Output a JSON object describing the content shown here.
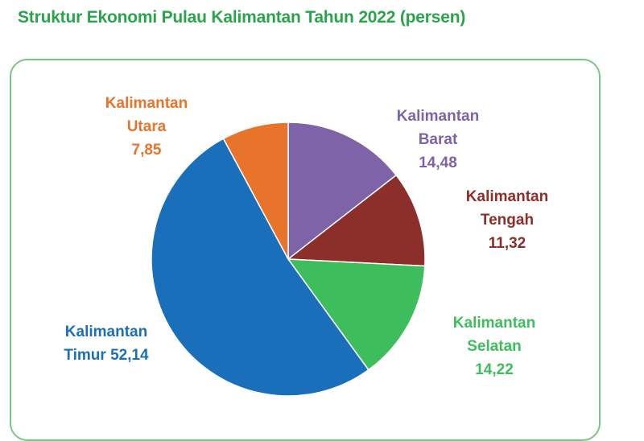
{
  "title": "Struktur Ekonomi Pulau Kalimantan Tahun 2022 (persen)",
  "chart_data": {
    "type": "pie",
    "title": "Struktur Ekonomi Pulau Kalimantan Tahun 2022 (persen)",
    "slices": [
      {
        "name": "Kalimantan Barat",
        "value": 14.48,
        "value_label": "14,48",
        "color": "#7e63a8"
      },
      {
        "name": "Kalimantan Tengah",
        "value": 11.32,
        "value_label": "11,32",
        "color": "#8c2e2a"
      },
      {
        "name": "Kalimantan Selatan",
        "value": 14.22,
        "value_label": "14,22",
        "color": "#3ebd5c"
      },
      {
        "name": "Kalimantan Timur",
        "value": 52.14,
        "value_label": "52,14",
        "color": "#1a6fba"
      },
      {
        "name": "Kalimantan Utara",
        "value": 7.85,
        "value_label": "7,85",
        "color": "#e8732a"
      }
    ],
    "labels": {
      "barat": {
        "line1": "Kalimantan",
        "line2": "Barat",
        "line3": "14,48"
      },
      "tengah": {
        "line1": "Kalimantan",
        "line2": "Tengah",
        "line3": "11,32"
      },
      "selatan": {
        "line1": "Kalimantan",
        "line2": "Selatan",
        "line3": "14,22"
      },
      "timur": {
        "line1": "Kalimantan",
        "line2": "Timur 52,14"
      },
      "utara": {
        "line1": "Kalimantan",
        "line2": "Utara",
        "line3": "7,85"
      }
    }
  }
}
